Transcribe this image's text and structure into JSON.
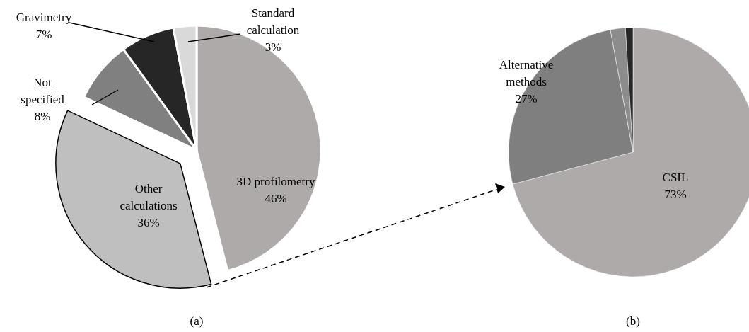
{
  "chart_data": [
    {
      "type": "pie",
      "title": "(a)",
      "categories": [
        "3D profilometry",
        "Other calculations",
        "Not specified",
        "Gravimetry",
        "Standard calculation"
      ],
      "values": [
        46,
        36,
        8,
        7,
        3
      ],
      "value_labels": [
        "46%",
        "36%",
        "8%",
        "7%",
        "3%"
      ],
      "colors": [
        "#aeaaaa",
        "#bfbfbf",
        "#808080",
        "#262626",
        "#d9d9d9"
      ]
    },
    {
      "type": "pie",
      "title": "(b)",
      "categories": [
        "CSIL",
        "Alternative methods",
        null,
        null
      ],
      "values": [
        73,
        27,
        2,
        1
      ],
      "value_labels": [
        "73%",
        "27%",
        null,
        null
      ],
      "colors": [
        "#aeaaaa",
        "#7f7f7f",
        "#8c8c8c",
        "#262626"
      ]
    }
  ]
}
